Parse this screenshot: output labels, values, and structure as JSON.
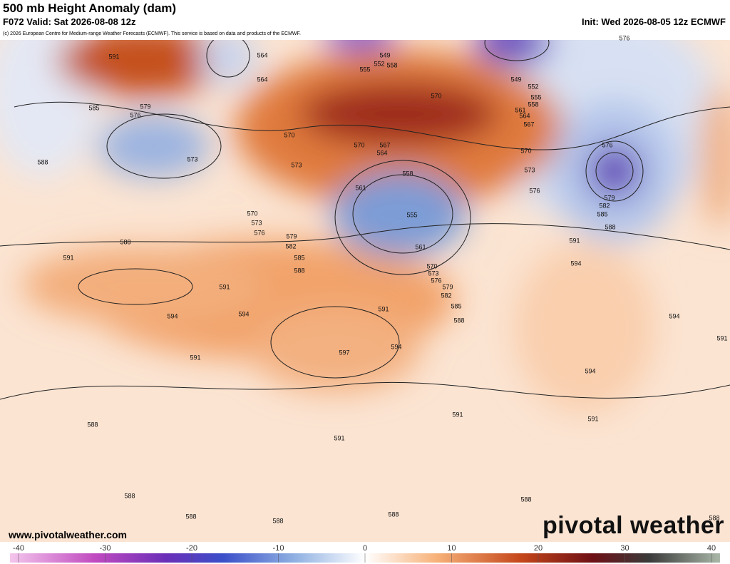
{
  "header": {
    "title": "500 mb Height Anomaly (dam)",
    "valid": "F072 Valid: Sat 2026-08-08 12z",
    "init": "Init: Wed 2026-08-05 12z ECMWF",
    "credit": "(c) 2026 European Centre for Medium-range Weather Forecasts (ECMWF). This service is based on data and products of the ECMWF."
  },
  "contour_labels": [
    591,
    564,
    564,
    549,
    552,
    555,
    558,
    570,
    549,
    552,
    555,
    558,
    561,
    564,
    567,
    585,
    579,
    576,
    570,
    573,
    588,
    570,
    567,
    564,
    570,
    573,
    576,
    576,
    576,
    579,
    582,
    585,
    588,
    573,
    558,
    561,
    555,
    561,
    570,
    573,
    576,
    579,
    582,
    585,
    588,
    591,
    588,
    591,
    594,
    594,
    591,
    570,
    573,
    576,
    579,
    582,
    585,
    588,
    594,
    597,
    591,
    594,
    594,
    591,
    594,
    591,
    591,
    591,
    591,
    588,
    588,
    588,
    588,
    588,
    588,
    588
  ],
  "colorbar": {
    "ticks": [
      -40,
      -30,
      -20,
      -10,
      0,
      10,
      20,
      30,
      40
    ]
  },
  "footer": {
    "url": "www.pivotalweather.com",
    "brand": "pivotal weather"
  }
}
